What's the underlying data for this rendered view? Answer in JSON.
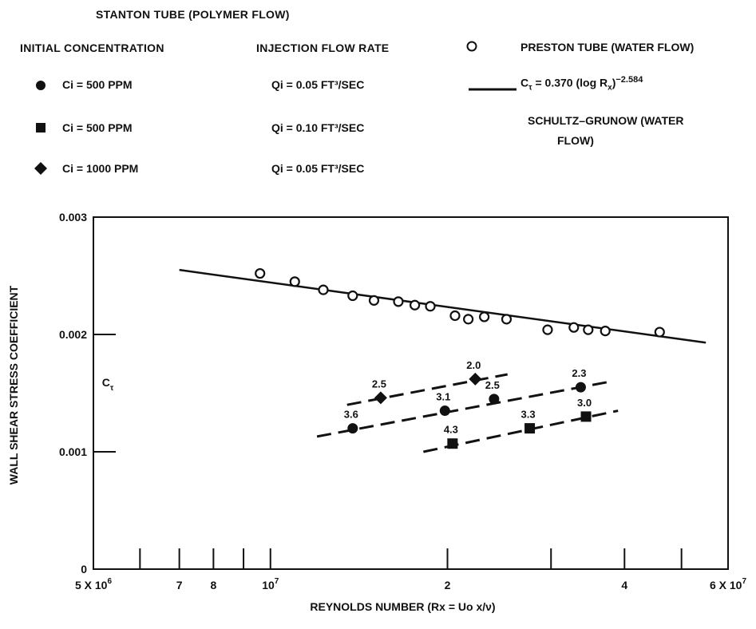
{
  "legend": {
    "polymer_header": "STANTON TUBE (POLYMER FLOW)",
    "conc_header": "INITIAL CONCENTRATION",
    "rate_header": "INJECTION FLOW RATE",
    "rows": [
      {
        "symbol": "circle",
        "conc_label": "Ci = 500 PPM",
        "rate_label": "Qi = 0.05 FT³/SEC"
      },
      {
        "symbol": "square",
        "conc_label": "Ci = 500 PPM",
        "rate_label": "Qi = 0.10 FT³/SEC"
      },
      {
        "symbol": "diamond",
        "conc_label": "Ci = 1000 PPM",
        "rate_label": "Qi = 0.05 FT³/SEC"
      }
    ],
    "preston_label": "PRESTON TUBE (WATER FLOW)",
    "equation": "Cτ = 0.370 (log Rx)^-2.584",
    "equation_parts": {
      "lhs": "C",
      "lhs_sub": "τ",
      "mid": " = 0.370 (log R",
      "mid_sub": "x",
      "rhs": ")",
      "exp": "−2.584"
    },
    "schultz_line1": "SCHULTZ–GRUNOW (WATER",
    "schultz_line2": "FLOW)"
  },
  "chart_data": {
    "type": "scatter",
    "title": "",
    "xlabel": "REYNOLDS NUMBER (Rx = Uo x/ν)",
    "ylabel": "WALL SHEAR STRESS COEFFICIENT",
    "ylabel_inner": "Cτ",
    "x_scale": "log",
    "xlim": [
      5000000,
      60000000
    ],
    "ylim": [
      0,
      0.003
    ],
    "x_tick_labels": [
      {
        "value": 5000000,
        "label": "5 X 10^6"
      },
      {
        "value": 7000000,
        "label": "7"
      },
      {
        "value": 8000000,
        "label": "8"
      },
      {
        "value": 10000000,
        "label": "10^7"
      },
      {
        "value": 20000000,
        "label": "2"
      },
      {
        "value": 40000000,
        "label": "4"
      },
      {
        "value": 60000000,
        "label": "6 X 10^7"
      }
    ],
    "x_minor_ticks": [
      6000000,
      9000000,
      30000000,
      50000000
    ],
    "y_ticks": [
      {
        "value": 0,
        "label": "0"
      },
      {
        "value": 0.001,
        "label": "0.001"
      },
      {
        "value": 0.002,
        "label": "0.002"
      },
      {
        "value": 0.003,
        "label": "0.003"
      }
    ],
    "grid": false,
    "series": [
      {
        "name": "PRESTON TUBE (WATER FLOW)",
        "marker": "open-circle",
        "x": [
          9600000,
          11000000,
          12300000,
          13800000,
          15000000,
          16500000,
          17600000,
          18700000,
          20600000,
          21700000,
          23100000,
          25200000,
          29600000,
          32800000,
          34700000,
          37100000,
          45900000
        ],
        "y": [
          0.00252,
          0.00245,
          0.00238,
          0.00233,
          0.00229,
          0.00228,
          0.00225,
          0.00224,
          0.00216,
          0.00213,
          0.00215,
          0.00213,
          0.00204,
          0.00206,
          0.00204,
          0.00203,
          0.00202
        ]
      },
      {
        "name": "SCHULTZ-GRUNOW (WATER FLOW)",
        "marker": "none",
        "line": "solid",
        "x": [
          7000000,
          55000000
        ],
        "y": [
          0.00255,
          0.00193
        ]
      },
      {
        "name": "Ci = 500 PPM, Qi = 0.05 FT3/SEC",
        "marker": "filled-circle",
        "line": "dashed",
        "x": [
          13800000,
          19800000,
          24000000,
          33700000
        ],
        "y": [
          0.0012,
          0.00135,
          0.00145,
          0.00155
        ],
        "point_labels": [
          "3.6",
          "3.1",
          "2.5",
          "2.3"
        ],
        "fit_x": [
          12000000,
          38000000
        ],
        "fit_y": [
          0.00113,
          0.0016
        ]
      },
      {
        "name": "Ci = 500 PPM, Qi = 0.10 FT3/SEC",
        "marker": "filled-square",
        "line": "dashed",
        "x": [
          20400000,
          27600000,
          34400000
        ],
        "y": [
          0.00107,
          0.0012,
          0.0013
        ],
        "point_labels": [
          "4.3",
          "3.3",
          "3.0"
        ],
        "fit_x": [
          18200000,
          39000000
        ],
        "fit_y": [
          0.001,
          0.00135
        ]
      },
      {
        "name": "Ci = 1000 PPM, Qi = 0.05 FT3/SEC",
        "marker": "filled-diamond",
        "line": "dashed",
        "x": [
          15400000,
          22300000
        ],
        "y": [
          0.00146,
          0.00162
        ],
        "point_labels": [
          "2.5",
          "2.0"
        ],
        "fit_x": [
          13500000,
          25300000
        ],
        "fit_y": [
          0.0014,
          0.00166
        ]
      }
    ]
  }
}
